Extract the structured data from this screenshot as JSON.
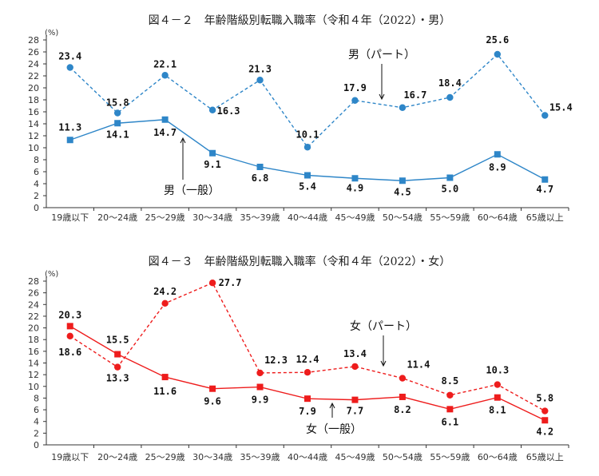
{
  "chart_data": [
    {
      "type": "line",
      "title": "図４－２　年齢階級別転職入職率（令和４年（2022）・男）",
      "ylabel": "(%)",
      "ylim": [
        0,
        28
      ],
      "yticks": [
        0,
        2,
        4,
        6,
        8,
        10,
        12,
        14,
        16,
        18,
        20,
        22,
        24,
        26,
        28
      ],
      "categories": [
        "19歳以下",
        "20～24歳",
        "25～29歳",
        "30～34歳",
        "35～39歳",
        "40～44歳",
        "45～49歳",
        "50～54歳",
        "55～59歳",
        "60～64歳",
        "65歳以上"
      ],
      "grid": false,
      "series": [
        {
          "name": "男（パート）",
          "style": "dashed",
          "marker": "circle",
          "color": "#2e86c8",
          "values": [
            23.4,
            15.8,
            22.1,
            16.3,
            21.3,
            10.1,
            17.9,
            16.7,
            18.4,
            25.6,
            15.4
          ],
          "labels": [
            "23.4",
            "15.8",
            "22.1",
            "16.3",
            "21.3",
            "10.1",
            "17.9",
            "16.7",
            "18.4",
            "25.6",
            "15.4"
          ]
        },
        {
          "name": "男（一般）",
          "style": "solid",
          "marker": "square",
          "color": "#2e86c8",
          "values": [
            11.3,
            14.1,
            14.7,
            9.1,
            6.8,
            5.4,
            4.9,
            4.5,
            5.0,
            8.9,
            4.7
          ],
          "labels": [
            "11.3",
            "14.1",
            "14.7",
            "9.1",
            "6.8",
            "5.4",
            "4.9",
            "4.5",
            "5.0",
            "8.9",
            "4.7"
          ]
        }
      ]
    },
    {
      "type": "line",
      "title": "図４－３　年齢階級別転職入職率（令和４年（2022）・女）",
      "ylabel": "(%)",
      "ylim": [
        0,
        28
      ],
      "yticks": [
        0,
        2,
        4,
        6,
        8,
        10,
        12,
        14,
        16,
        18,
        20,
        22,
        24,
        26,
        28
      ],
      "categories": [
        "19歳以下",
        "20～24歳",
        "25～29歳",
        "30～34歳",
        "35～39歳",
        "40～44歳",
        "45～49歳",
        "50～54歳",
        "55～59歳",
        "60～64歳",
        "65歳以上"
      ],
      "grid": false,
      "series": [
        {
          "name": "女（パート）",
          "style": "dashed",
          "marker": "circle",
          "color": "#ee1c1c",
          "values": [
            18.6,
            13.3,
            24.2,
            27.7,
            12.3,
            12.4,
            13.4,
            11.4,
            8.5,
            10.3,
            5.8
          ],
          "labels": [
            "18.6",
            "13.3",
            "24.2",
            "27.7",
            "12.3",
            "12.4",
            "13.4",
            "11.4",
            "8.5",
            "10.3",
            "5.8"
          ]
        },
        {
          "name": "女（一般）",
          "style": "solid",
          "marker": "square",
          "color": "#ee1c1c",
          "values": [
            20.3,
            15.5,
            11.6,
            9.6,
            9.9,
            7.9,
            7.7,
            8.2,
            6.1,
            8.1,
            4.2
          ],
          "labels": [
            "20.3",
            "15.5",
            "11.6",
            "9.6",
            "9.9",
            "7.9",
            "7.7",
            "8.2",
            "6.1",
            "8.1",
            "4.2"
          ]
        }
      ]
    }
  ]
}
